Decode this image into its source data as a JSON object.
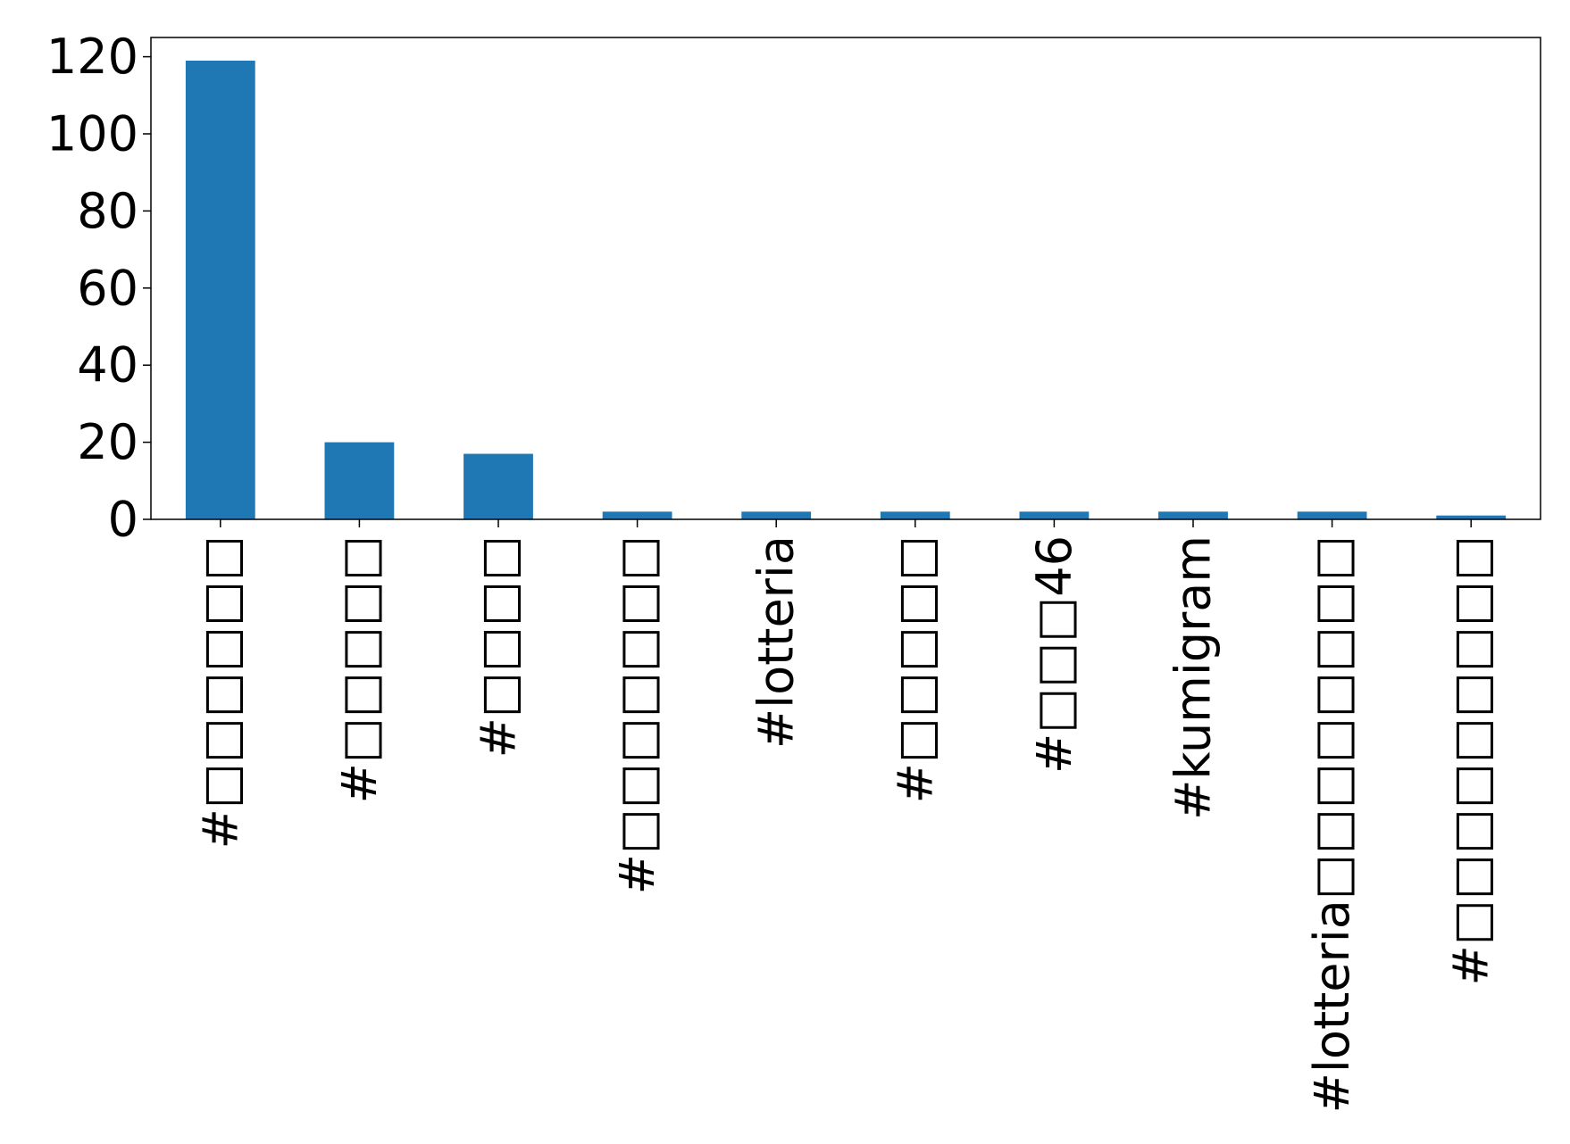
{
  "chart_data": {
    "type": "bar",
    "categories": [
      "#□□□□□□",
      "#□□□□□",
      "#□□□□",
      "#□□□□□□□",
      "#lotteria",
      "#□□□□□",
      "#□□□46",
      "#kumigram",
      "#lotteria□□□□□□□□",
      "#□□□□□□□□□"
    ],
    "values": [
      119,
      20,
      17,
      2,
      2,
      2,
      2,
      2,
      2,
      1
    ],
    "title": "",
    "xlabel": "",
    "ylabel": "",
    "ylim": [
      0,
      125
    ],
    "yticks": [
      0,
      20,
      40,
      60,
      80,
      100,
      120
    ],
    "grid": false,
    "bar_color": "#1f77b4"
  }
}
